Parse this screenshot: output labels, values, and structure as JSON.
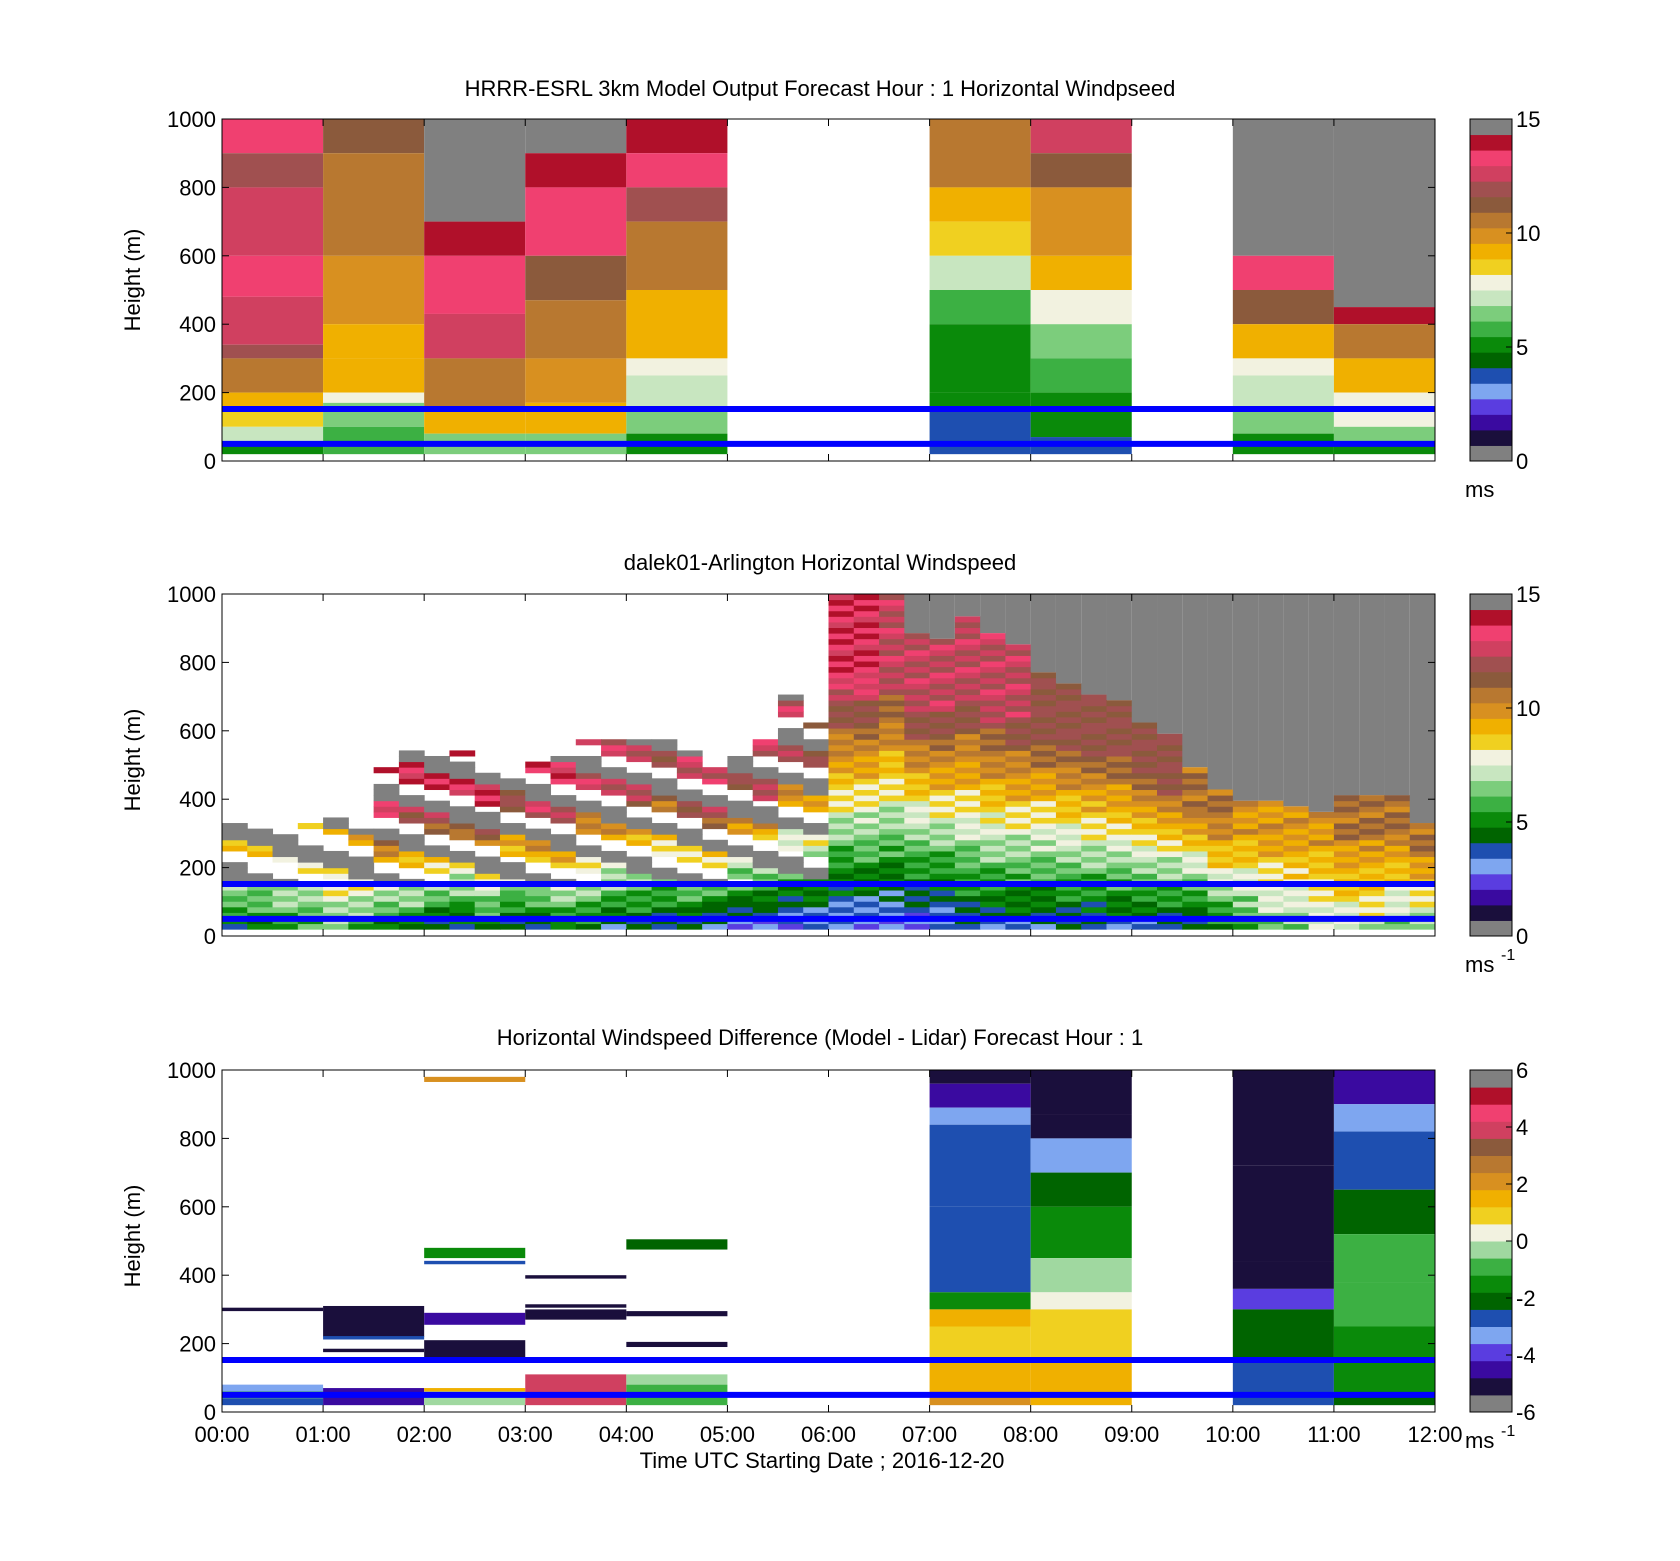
{
  "colors": {
    "speed_scale": [
      "#808080",
      "#1a0f3c",
      "#3a0aa0",
      "#5a3de0",
      "#7ea6f0",
      "#1e4fb0",
      "#006400",
      "#0a8a0a",
      "#3cb043",
      "#7ccd7c",
      "#c8e6c0",
      "#f2f2e0",
      "#f0d020",
      "#f0b000",
      "#d89020",
      "#b87830",
      "#8b5a3c",
      "#a05050",
      "#d04060",
      "#f04070",
      "#b0102a",
      "#808080"
    ],
    "diff_scale": [
      "#808080",
      "#1a0f3c",
      "#3a0aa0",
      "#5a3de0",
      "#7ea6f0",
      "#1e4fb0",
      "#006400",
      "#0a8a0a",
      "#3cb043",
      "#a0d8a0",
      "#f2f2e0",
      "#f0d020",
      "#f0b000",
      "#d89020",
      "#b87830",
      "#8b5a3c",
      "#d04060",
      "#f04070",
      "#b0102a",
      "#808080"
    ],
    "blue_line": "#0000ff",
    "missing": "#808080"
  },
  "chart_data": [
    {
      "type": "heatmap",
      "title": "HRRR-ESRL 3km Model Output   Forecast Hour : 1 Horizontal Windpseed",
      "ylabel": "Height (m)",
      "ylim": [
        0,
        1000
      ],
      "y_ticks": [
        "0",
        "200",
        "400",
        "600",
        "800",
        "1000"
      ],
      "x_hours": [
        0,
        12
      ],
      "colorbar": {
        "ticks": [
          "0",
          "5",
          "10",
          "15"
        ],
        "range": [
          0,
          15
        ],
        "unit": "ms",
        "unit_sup": ""
      },
      "reference_lines_m": [
        50,
        152
      ],
      "columns": [
        {
          "t0": 0,
          "t1": 1,
          "top": 1000,
          "rows": [
            [
              900,
              1000,
              13.5
            ],
            [
              800,
              900,
              12
            ],
            [
              600,
              800,
              12.8
            ],
            [
              480,
              600,
              13.8
            ],
            [
              340,
              480,
              13.2
            ],
            [
              300,
              340,
              12
            ],
            [
              200,
              300,
              10.5
            ],
            [
              150,
              200,
              9
            ],
            [
              100,
              150,
              8.5
            ],
            [
              50,
              100,
              7
            ],
            [
              20,
              50,
              5
            ]
          ]
        },
        {
          "t0": 1,
          "t1": 2,
          "top": 1000,
          "rows": [
            [
              900,
              1000,
              11.8
            ],
            [
              600,
              900,
              10.5
            ],
            [
              400,
              600,
              10.2
            ],
            [
              300,
              400,
              9.5
            ],
            [
              200,
              300,
              9
            ],
            [
              170,
              200,
              7.5
            ],
            [
              100,
              170,
              6.5
            ],
            [
              20,
              100,
              5.8
            ]
          ]
        },
        {
          "t0": 2,
          "t1": 3,
          "top": 1000,
          "rows": [
            [
              700,
              1000,
              -1
            ],
            [
              600,
              700,
              14.5
            ],
            [
              430,
              600,
              13.8
            ],
            [
              300,
              430,
              12.8
            ],
            [
              150,
              300,
              10.5
            ],
            [
              80,
              150,
              9.3
            ],
            [
              20,
              80,
              6
            ]
          ]
        },
        {
          "t0": 3,
          "t1": 4,
          "top": 1000,
          "rows": [
            [
              900,
              1000,
              -1
            ],
            [
              800,
              900,
              14.8
            ],
            [
              600,
              800,
              14
            ],
            [
              470,
              600,
              11.8
            ],
            [
              300,
              470,
              10.5
            ],
            [
              170,
              300,
              9.8
            ],
            [
              80,
              170,
              9
            ],
            [
              20,
              80,
              6.5
            ]
          ]
        },
        {
          "t0": 4,
          "t1": 5,
          "top": 1000,
          "rows": [
            [
              900,
              1000,
              14.8
            ],
            [
              800,
              900,
              13.8
            ],
            [
              700,
              800,
              12
            ],
            [
              500,
              700,
              10.5
            ],
            [
              300,
              500,
              9.5
            ],
            [
              250,
              300,
              8
            ],
            [
              150,
              250,
              7
            ],
            [
              80,
              150,
              6
            ],
            [
              20,
              80,
              5
            ]
          ]
        },
        {
          "t0": 5,
          "t1": 7,
          "top": 0,
          "rows": []
        },
        {
          "t0": 7,
          "t1": 8,
          "top": 1000,
          "rows": [
            [
              800,
              1000,
              10.8
            ],
            [
              700,
              800,
              9.2
            ],
            [
              600,
              700,
              8.5
            ],
            [
              500,
              600,
              6.8
            ],
            [
              400,
              500,
              5.8
            ],
            [
              200,
              400,
              4.8
            ],
            [
              150,
              200,
              4.5
            ],
            [
              20,
              150,
              3.2
            ]
          ]
        },
        {
          "t0": 8,
          "t1": 9,
          "top": 1000,
          "rows": [
            [
              900,
              1000,
              12.8
            ],
            [
              800,
              900,
              11.5
            ],
            [
              600,
              800,
              10.2
            ],
            [
              500,
              600,
              9.2
            ],
            [
              400,
              500,
              7.5
            ],
            [
              300,
              400,
              6.5
            ],
            [
              200,
              300,
              5.5
            ],
            [
              70,
              200,
              4.5
            ],
            [
              20,
              70,
              3.5
            ]
          ]
        },
        {
          "t0": 9,
          "t1": 10,
          "top": 0,
          "rows": []
        },
        {
          "t0": 10,
          "t1": 11,
          "top": 1000,
          "rows": [
            [
              600,
              1000,
              -1
            ],
            [
              500,
              600,
              13.8
            ],
            [
              400,
              500,
              11.8
            ],
            [
              300,
              400,
              9.5
            ],
            [
              250,
              300,
              8
            ],
            [
              150,
              250,
              7
            ],
            [
              80,
              150,
              6
            ],
            [
              20,
              80,
              4.8
            ]
          ]
        },
        {
          "t0": 11,
          "t1": 12,
          "top": 1000,
          "rows": [
            [
              450,
              1000,
              -1
            ],
            [
              400,
              450,
              14.5
            ],
            [
              300,
              400,
              11
            ],
            [
              200,
              300,
              9.5
            ],
            [
              100,
              200,
              8
            ],
            [
              50,
              100,
              6
            ],
            [
              20,
              50,
              4.8
            ]
          ]
        }
      ]
    },
    {
      "type": "heatmap",
      "title": "dalek01-Arlington  Horizontal Windspeed",
      "ylabel": "Height (m)",
      "ylim": [
        0,
        1000
      ],
      "y_ticks": [
        "0",
        "200",
        "400",
        "600",
        "800",
        "1000"
      ],
      "x_hours": [
        0,
        12
      ],
      "colorbar": {
        "ticks": [
          "0",
          "5",
          "10",
          "15"
        ],
        "range": [
          0,
          15
        ],
        "unit": "ms",
        "unit_sup": "-1"
      },
      "reference_lines_m": [
        50,
        152
      ],
      "lidar_columns_dt_h": 0.25,
      "lidar_tops_m": [
        330,
        340,
        320,
        330,
        340,
        300,
        490,
        540,
        520,
        540,
        500,
        460,
        500,
        520,
        560,
        560,
        560,
        560,
        540,
        490,
        520,
        560,
        700,
        610,
        1000,
        1000,
        1000,
        880,
        860,
        920,
        870,
        840,
        760,
        730,
        700,
        680,
        620,
        580,
        480,
        420,
        390,
        380,
        370,
        360,
        400,
        410,
        400,
        330
      ],
      "lidar_profiles": {
        "low_speed": [
          4,
          4,
          5,
          5,
          6,
          5,
          4,
          4,
          3,
          3,
          4,
          3,
          3,
          4,
          4,
          3,
          3,
          3,
          3,
          2,
          2,
          2,
          2,
          2,
          2,
          2,
          2,
          2,
          2,
          3,
          3,
          3,
          3,
          3,
          3,
          3,
          3,
          3,
          3,
          4,
          5,
          6,
          6,
          7,
          7,
          7,
          6,
          6
        ],
        "upper_speed": [
          9,
          9,
          9,
          9,
          10,
          10,
          14,
          14,
          14,
          14,
          14,
          12,
          14,
          14,
          13,
          13,
          13,
          12,
          13,
          13,
          12,
          13,
          13,
          12,
          14,
          14,
          13,
          13,
          13,
          13,
          13,
          13,
          12,
          12,
          12,
          12,
          12,
          12,
          11,
          11,
          10,
          10,
          10,
          10,
          11,
          11,
          11,
          11
        ],
        "missing_fraction": [
          0.8,
          0.8,
          0.8,
          0.8,
          0.8,
          0.8,
          0.55,
          0.55,
          0.55,
          0.55,
          0.55,
          0.55,
          0.55,
          0.55,
          0.55,
          0.55,
          0.55,
          0.55,
          0.55,
          0.55,
          0.55,
          0.55,
          0.55,
          0.55,
          0,
          0,
          0,
          0,
          0,
          0,
          0,
          0,
          0,
          0,
          0,
          0,
          0,
          0,
          0,
          0,
          0,
          0,
          0,
          0,
          0,
          0,
          0,
          0
        ]
      }
    },
    {
      "type": "heatmap",
      "title": "Horizontal Windspeed Difference (Model - Lidar) Forecast Hour : 1",
      "xlabel": "Time UTC  Starting Date ; 2016-12-20",
      "ylabel": "Height (m)",
      "ylim": [
        0,
        1000
      ],
      "y_ticks": [
        "0",
        "200",
        "400",
        "600",
        "800",
        "1000"
      ],
      "x_ticks": [
        "00:00",
        "01:00",
        "02:00",
        "03:00",
        "04:00",
        "05:00",
        "06:00",
        "07:00",
        "08:00",
        "09:00",
        "10:00",
        "11:00",
        "12:00"
      ],
      "x_hours": [
        0,
        12
      ],
      "colorbar": {
        "ticks": [
          "-6",
          "-4",
          "-2",
          "0",
          "2",
          "4",
          "6"
        ],
        "range": [
          -6,
          6
        ],
        "unit": "ms",
        "unit_sup": "-1"
      },
      "reference_lines_m": [
        50,
        152
      ],
      "columns": [
        {
          "t0": 0,
          "t1": 1,
          "top": 1000,
          "rows": [
            [
              295,
              305,
              -6.5
            ],
            [
              60,
              80,
              -3.5
            ],
            [
              40,
              60,
              -1.2
            ],
            [
              20,
              40,
              -3
            ]
          ]
        },
        {
          "t0": 1,
          "t1": 2,
          "top": 1000,
          "rows": [
            [
              220,
              310,
              -6.5
            ],
            [
              212,
              222,
              -2.8
            ],
            [
              175,
              185,
              -6.5
            ],
            [
              20,
              70,
              -5.2
            ]
          ]
        },
        {
          "t0": 2,
          "t1": 3,
          "top": 1000,
          "rows": [
            [
              965,
              980,
              2.5
            ],
            [
              450,
              480,
              -1.5
            ],
            [
              432,
              442,
              -2.8
            ],
            [
              255,
              290,
              -5.2
            ],
            [
              160,
              210,
              -6.5
            ],
            [
              60,
              70,
              1.5
            ],
            [
              20,
              60,
              -0.5
            ]
          ]
        },
        {
          "t0": 3,
          "t1": 4,
          "top": 1000,
          "rows": [
            [
              390,
              400,
              -5.5
            ],
            [
              305,
              315,
              -6
            ],
            [
              270,
              300,
              -6.5
            ],
            [
              20,
              110,
              4.5
            ]
          ]
        },
        {
          "t0": 4,
          "t1": 5,
          "top": 1000,
          "rows": [
            [
              475,
              505,
              -2.5
            ],
            [
              280,
              295,
              -6.5
            ],
            [
              190,
              205,
              -6.5
            ],
            [
              80,
              110,
              -0.3
            ],
            [
              20,
              80,
              -0.8
            ]
          ]
        },
        {
          "t0": 5,
          "t1": 7,
          "top": 0,
          "rows": []
        },
        {
          "t0": 7,
          "t1": 8,
          "top": 1000,
          "rows": [
            [
              960,
              1000,
              -6.5
            ],
            [
              890,
              960,
              -5
            ],
            [
              840,
              890,
              -3.5
            ],
            [
              600,
              840,
              -3
            ],
            [
              350,
              600,
              -2.8
            ],
            [
              300,
              350,
              -1.8
            ],
            [
              250,
              300,
              1.5
            ],
            [
              150,
              250,
              1
            ],
            [
              60,
              150,
              1.8
            ],
            [
              20,
              60,
              2.5
            ]
          ]
        },
        {
          "t0": 8,
          "t1": 9,
          "top": 1000,
          "rows": [
            [
              870,
              1000,
              -6.5
            ],
            [
              800,
              870,
              -5.5
            ],
            [
              700,
              800,
              -3.5
            ],
            [
              600,
              700,
              -2.6
            ],
            [
              450,
              600,
              -1.6
            ],
            [
              350,
              450,
              -0.4
            ],
            [
              300,
              350,
              0.4
            ],
            [
              150,
              300,
              1.2
            ],
            [
              20,
              150,
              1.5
            ]
          ]
        },
        {
          "t0": 9,
          "t1": 10,
          "top": 0,
          "rows": []
        },
        {
          "t0": 10,
          "t1": 11,
          "top": 1000,
          "rows": [
            [
              720,
              1000,
              -5.8
            ],
            [
              440,
              720,
              -6.5
            ],
            [
              360,
              440,
              -5.5
            ],
            [
              300,
              360,
              -4.5
            ],
            [
              150,
              300,
              -2.5
            ],
            [
              20,
              150,
              -2.8
            ]
          ]
        },
        {
          "t0": 11,
          "t1": 12,
          "top": 1000,
          "rows": [
            [
              900,
              1000,
              -4.8
            ],
            [
              820,
              900,
              -3.8
            ],
            [
              650,
              820,
              -2.8
            ],
            [
              520,
              650,
              -2.4
            ],
            [
              380,
              520,
              -1.2
            ],
            [
              250,
              380,
              -0.8
            ],
            [
              150,
              250,
              -1.4
            ],
            [
              50,
              150,
              -2
            ],
            [
              20,
              50,
              -2.6
            ]
          ]
        }
      ]
    }
  ]
}
